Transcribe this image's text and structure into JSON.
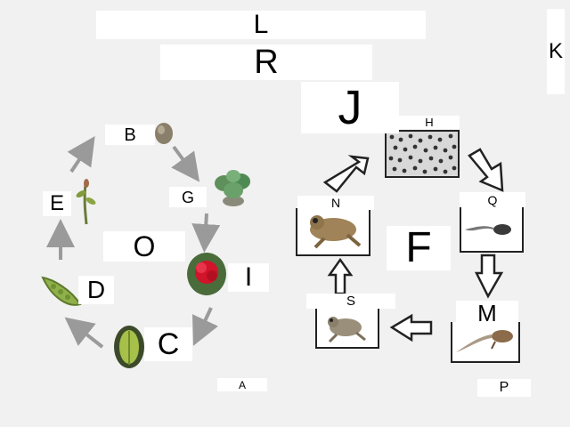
{
  "labels": {
    "L": "L",
    "R": "R",
    "K": "K",
    "J": "J",
    "H": "H",
    "B": "B",
    "G": "G",
    "E": "E",
    "O": "O",
    "I": "I",
    "D": "D",
    "C": "C",
    "A": "A",
    "N": "N",
    "Q": "Q",
    "F": "F",
    "M": "M",
    "S": "S",
    "P": "P"
  },
  "colors": {
    "background": "#f1f1f1",
    "label_box": "#ffffff",
    "plant_arrow": "#9a9a9a",
    "frog_arrow_outline": "#222222"
  },
  "icons": {
    "plant_cycle": [
      "seed-icon",
      "seedling-icon",
      "young-plant-icon",
      "mature-plant-icon",
      "flowering-plant-icon",
      "fruit-icon",
      "pea-pod-icon"
    ],
    "frog_cycle": [
      "frog-eggs-icon",
      "tadpole-icon",
      "tadpole-with-legs-icon",
      "froglet-icon",
      "adult-frog-icon"
    ]
  }
}
